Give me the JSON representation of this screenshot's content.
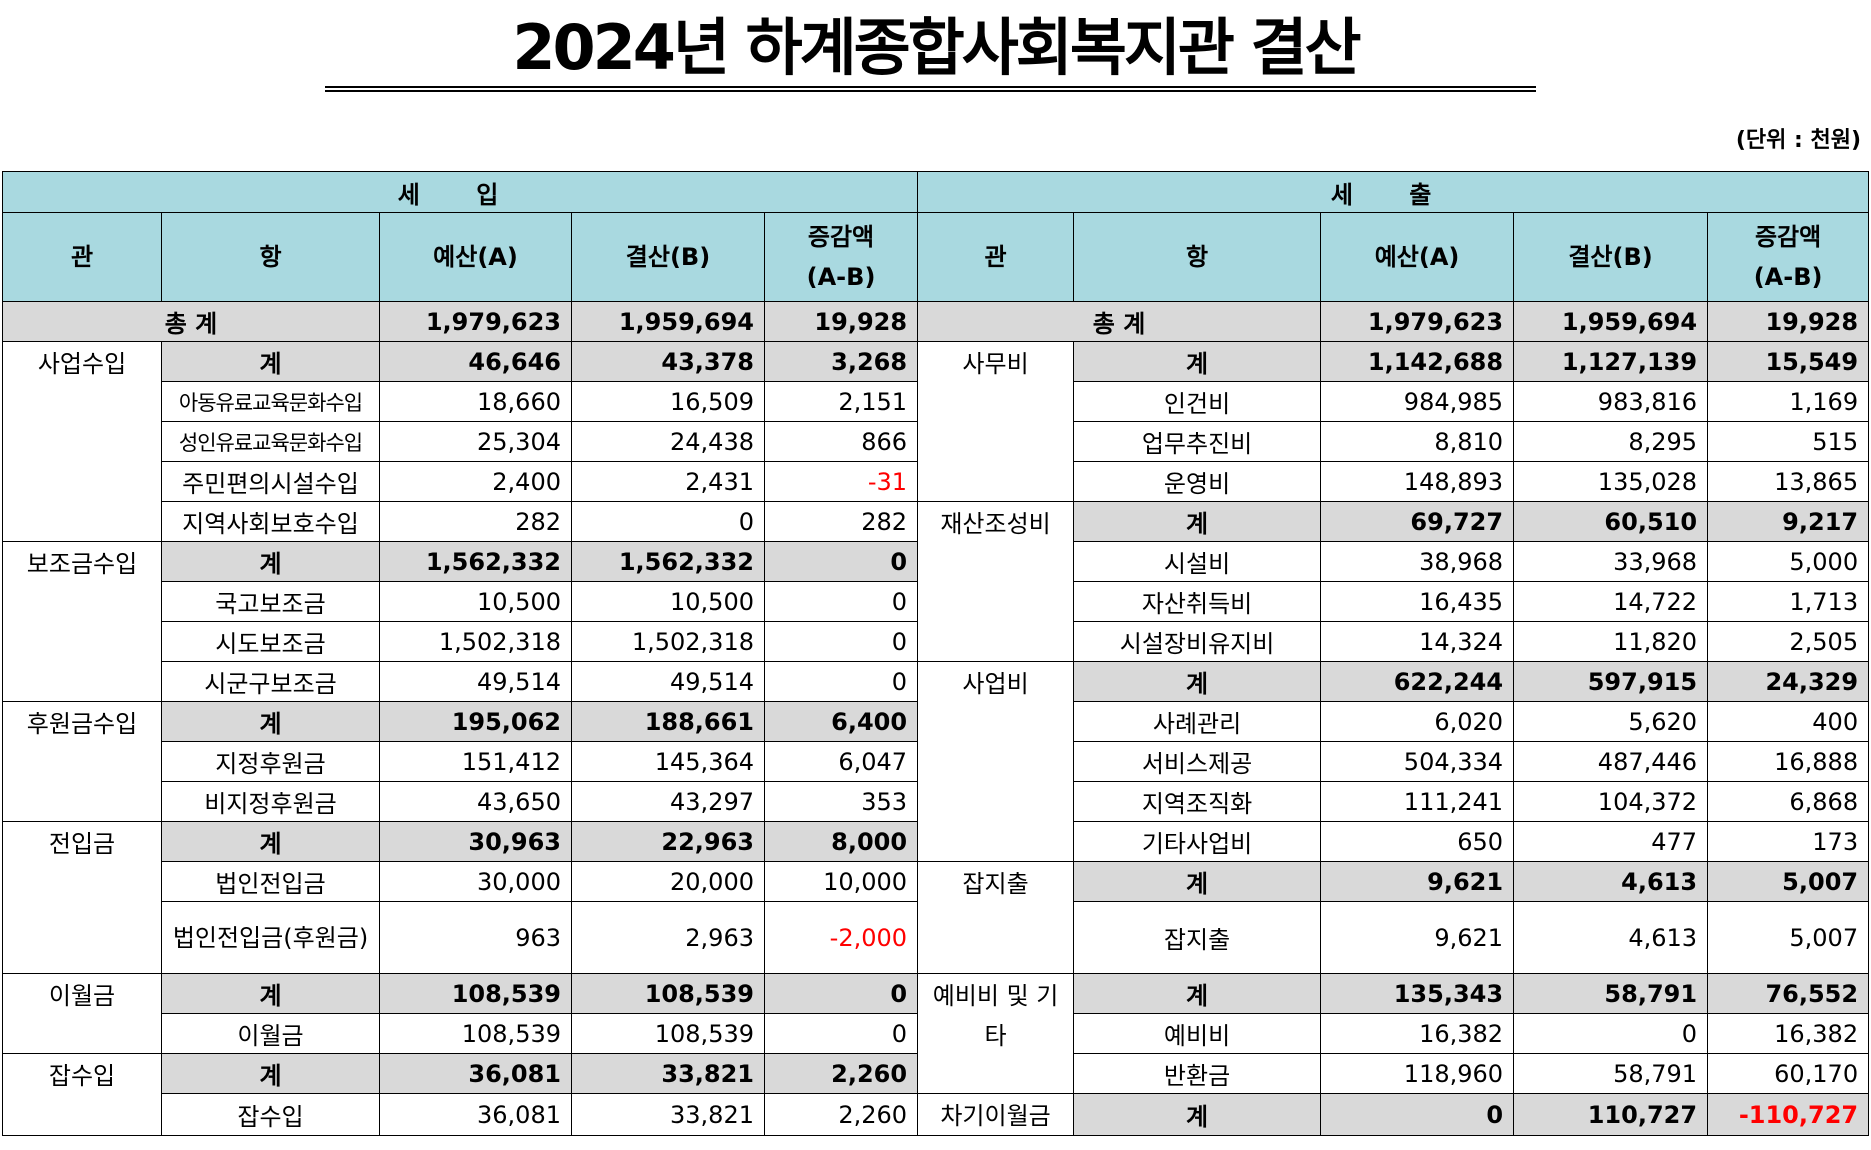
{
  "title": "2024년 하계종합사회복지관 결산",
  "unit": "(단위 : 천원)",
  "headers": {
    "income": "세 입",
    "expense": "세 출",
    "gwan": "관",
    "hang": "항",
    "budget": "예산(A)",
    "settle": "결산(B)",
    "diff1": "증감액",
    "diff2": "(A-B)"
  },
  "totals": {
    "label": "총 계",
    "income": [
      "1,979,623",
      "1,959,694",
      "19,928"
    ],
    "expense": [
      "1,979,623",
      "1,959,694",
      "19,928"
    ]
  },
  "income": [
    {
      "gwan": "사업수입",
      "rows": [
        {
          "hang": "계",
          "v": [
            "46,646",
            "43,378",
            "3,268"
          ]
        },
        {
          "hang": "아동유료교육문화수입",
          "v": [
            "18,660",
            "16,509",
            "2,151"
          ]
        },
        {
          "hang": "성인유료교육문화수입",
          "v": [
            "25,304",
            "24,438",
            "866"
          ]
        },
        {
          "hang": "주민편의시설수입",
          "v": [
            "2,400",
            "2,431",
            "-31"
          ]
        },
        {
          "hang": "지역사회보호수입",
          "v": [
            "282",
            "0",
            "282"
          ]
        }
      ]
    },
    {
      "gwan": "보조금수입",
      "rows": [
        {
          "hang": "계",
          "v": [
            "1,562,332",
            "1,562,332",
            "0"
          ]
        },
        {
          "hang": "국고보조금",
          "v": [
            "10,500",
            "10,500",
            "0"
          ]
        },
        {
          "hang": "시도보조금",
          "v": [
            "1,502,318",
            "1,502,318",
            "0"
          ]
        },
        {
          "hang": "시군구보조금",
          "v": [
            "49,514",
            "49,514",
            "0"
          ]
        }
      ]
    },
    {
      "gwan": "후원금수입",
      "rows": [
        {
          "hang": "계",
          "v": [
            "195,062",
            "188,661",
            "6,400"
          ]
        },
        {
          "hang": "지정후원금",
          "v": [
            "151,412",
            "145,364",
            "6,047"
          ]
        },
        {
          "hang": "비지정후원금",
          "v": [
            "43,650",
            "43,297",
            "353"
          ]
        }
      ]
    },
    {
      "gwan": "전입금",
      "rows": [
        {
          "hang": "계",
          "v": [
            "30,963",
            "22,963",
            "8,000"
          ]
        },
        {
          "hang": "법인전입금",
          "v": [
            "30,000",
            "20,000",
            "10,000"
          ]
        },
        {
          "hang": "법인전입금(후원금)",
          "v": [
            "963",
            "2,963",
            "-2,000"
          ]
        }
      ]
    },
    {
      "gwan": "이월금",
      "rows": [
        {
          "hang": "계",
          "v": [
            "108,539",
            "108,539",
            "0"
          ]
        },
        {
          "hang": "이월금",
          "v": [
            "108,539",
            "108,539",
            "0"
          ]
        }
      ]
    },
    {
      "gwan": "잡수입",
      "rows": [
        {
          "hang": "계",
          "v": [
            "36,081",
            "33,821",
            "2,260"
          ]
        },
        {
          "hang": "잡수입",
          "v": [
            "36,081",
            "33,821",
            "2,260"
          ]
        }
      ]
    }
  ],
  "expense": [
    {
      "gwan": "사무비",
      "rows": [
        {
          "hang": "계",
          "v": [
            "1,142,688",
            "1,127,139",
            "15,549"
          ]
        },
        {
          "hang": "인건비",
          "v": [
            "984,985",
            "983,816",
            "1,169"
          ]
        },
        {
          "hang": "업무추진비",
          "v": [
            "8,810",
            "8,295",
            "515"
          ]
        },
        {
          "hang": "운영비",
          "v": [
            "148,893",
            "135,028",
            "13,865"
          ]
        }
      ]
    },
    {
      "gwan": "재산조성비",
      "rows": [
        {
          "hang": "계",
          "v": [
            "69,727",
            "60,510",
            "9,217"
          ]
        },
        {
          "hang": "시설비",
          "v": [
            "38,968",
            "33,968",
            "5,000"
          ]
        },
        {
          "hang": "자산취득비",
          "v": [
            "16,435",
            "14,722",
            "1,713"
          ]
        },
        {
          "hang": "시설장비유지비",
          "v": [
            "14,324",
            "11,820",
            "2,505"
          ]
        }
      ]
    },
    {
      "gwan": "사업비",
      "rows": [
        {
          "hang": "계",
          "v": [
            "622,244",
            "597,915",
            "24,329"
          ]
        },
        {
          "hang": "사례관리",
          "v": [
            "6,020",
            "5,620",
            "400"
          ]
        },
        {
          "hang": "서비스제공",
          "v": [
            "504,334",
            "487,446",
            "16,888"
          ]
        },
        {
          "hang": "지역조직화",
          "v": [
            "111,241",
            "104,372",
            "6,868"
          ]
        },
        {
          "hang": "기타사업비",
          "v": [
            "650",
            "477",
            "173"
          ]
        }
      ]
    },
    {
      "gwan": "잡지출",
      "rows": [
        {
          "hang": "계",
          "v": [
            "9,621",
            "4,613",
            "5,007"
          ]
        },
        {
          "hang": "잡지출",
          "v": [
            "9,621",
            "4,613",
            "5,007"
          ]
        }
      ]
    },
    {
      "gwan": "예비비 및 기타",
      "rows": [
        {
          "hang": "계",
          "v": [
            "135,343",
            "58,791",
            "76,552"
          ]
        },
        {
          "hang": "예비비",
          "v": [
            "16,382",
            "0",
            "16,382"
          ]
        },
        {
          "hang": "반환금",
          "v": [
            "118,960",
            "58,791",
            "60,170"
          ]
        }
      ]
    },
    {
      "gwan": "차기이월금",
      "rows": [
        {
          "hang": "계",
          "v": [
            "0",
            "110,727",
            "-110,727"
          ]
        }
      ]
    }
  ],
  "colors": {
    "header": "#a9d9e0",
    "subtotal": "#d9d9d9",
    "negative": "#ff0000"
  }
}
